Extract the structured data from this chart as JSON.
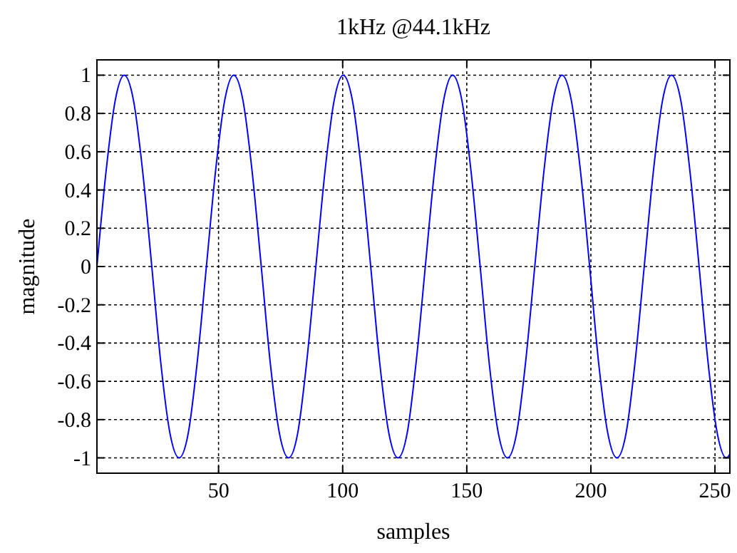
{
  "chart_data": {
    "type": "line",
    "title": "1kHz @44.1kHz",
    "xlabel": "samples",
    "ylabel": "magnitude",
    "x": [
      1,
      4.7,
      8.4,
      12,
      15.7,
      19.4,
      23.1,
      26.7,
      30.4,
      34.1,
      37.8,
      41.4,
      45.1,
      48.8,
      52.5,
      56.1,
      59.8,
      63.5,
      67.2,
      70.8,
      74.5,
      78.2,
      81.9,
      85.5,
      89.2,
      92.9,
      96.6,
      100.2,
      103.9,
      107.6,
      111.3,
      114.9,
      118.6,
      122.3,
      126,
      129.6,
      133.3,
      137,
      140.7,
      144.3,
      148,
      151.7,
      155.4,
      159,
      162.7,
      166.4,
      170.1,
      173.7,
      177.4,
      181.1,
      184.8,
      188.4,
      192.1,
      195.8,
      199.5,
      203.1,
      206.8,
      210.5,
      214.2,
      217.8,
      221.5,
      225.2,
      228.9,
      232.5,
      236.2,
      239.9,
      243.6,
      247.2,
      250.9,
      254.6,
      256
    ],
    "series": [
      {
        "color": "#0000ff",
        "values": [
          0,
          0.5,
          0.87,
          1,
          0.87,
          0.5,
          0,
          -0.5,
          -0.87,
          -1,
          -0.87,
          -0.5,
          0,
          0.5,
          0.87,
          1,
          0.87,
          0.5,
          0,
          -0.5,
          -0.87,
          -1,
          -0.87,
          -0.5,
          0,
          0.5,
          0.87,
          1,
          0.87,
          0.5,
          0,
          -0.5,
          -0.87,
          -1,
          -0.87,
          -0.5,
          0,
          0.5,
          0.87,
          1,
          0.87,
          0.5,
          0,
          -0.5,
          -0.87,
          -1,
          -0.87,
          -0.5,
          0,
          0.5,
          0.87,
          1,
          0.87,
          0.5,
          0,
          -0.5,
          -0.87,
          -1,
          -0.87,
          -0.5,
          0,
          0.5,
          0.87,
          1,
          0.87,
          0.5,
          0,
          -0.5,
          -0.87,
          -1,
          -0.98
        ]
      }
    ],
    "xlim": [
      1,
      256
    ],
    "xticks": [
      50,
      100,
      150,
      200,
      250
    ],
    "ylim": [
      -1.08,
      1.08
    ],
    "yticks": [
      -1,
      -0.8,
      -0.6,
      -0.4,
      -0.2,
      0,
      0.2,
      0.4,
      0.6,
      0.8,
      1
    ],
    "grid": true
  }
}
